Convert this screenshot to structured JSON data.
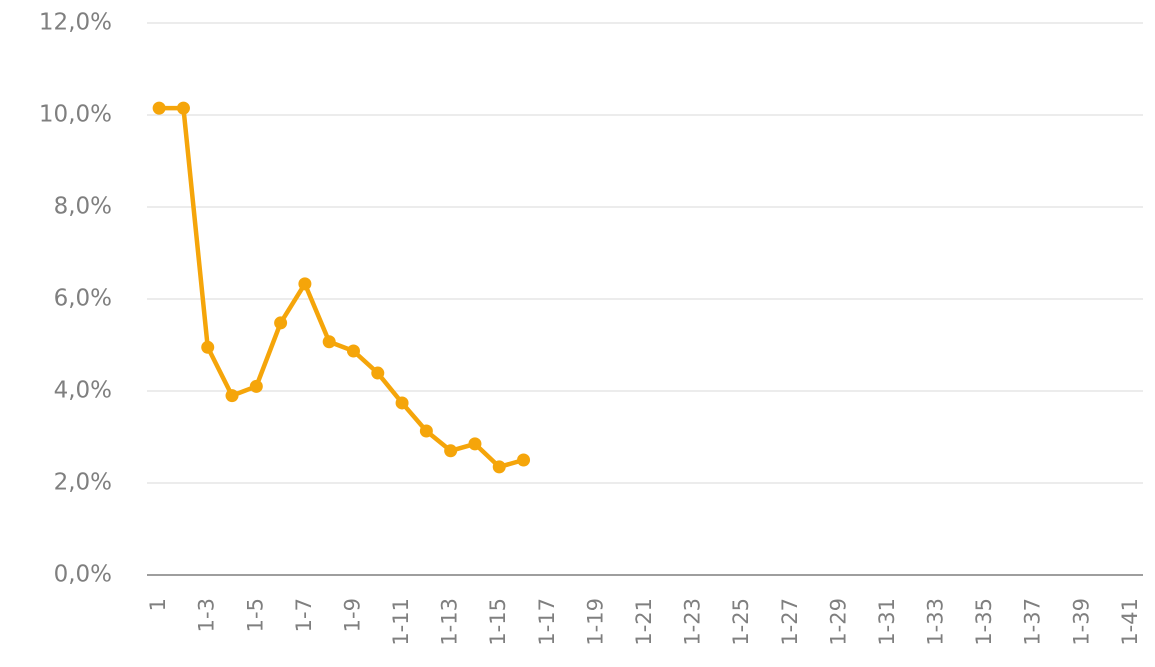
{
  "chart_data": {
    "type": "line",
    "categories": [
      "1",
      null,
      "1-3",
      null,
      "1-5",
      null,
      "1-7",
      null,
      "1-9",
      null,
      "1-11",
      null,
      "1-13",
      null,
      "1-15",
      null,
      "1-17",
      null,
      "1-19",
      null,
      "1-21",
      null,
      "1-23",
      null,
      "1-25",
      null,
      "1-27",
      null,
      "1-29",
      null,
      "1-31",
      null,
      "1-33",
      null,
      "1-35",
      null,
      "1-37",
      null,
      "1-39",
      null,
      "1-41"
    ],
    "series": [
      {
        "color": "#f5a50a",
        "values": [
          10.15,
          10.15,
          4.95,
          3.9,
          4.1,
          5.48,
          6.33,
          5.07,
          4.87,
          4.39,
          3.74,
          3.13,
          2.7,
          2.85,
          2.35,
          2.5,
          null,
          null,
          null,
          null,
          null,
          null,
          null,
          null,
          null,
          null,
          null,
          null,
          null,
          null,
          null,
          null,
          null,
          null,
          null,
          null,
          null,
          null,
          null,
          null,
          null
        ]
      }
    ],
    "ylim": [
      0,
      12
    ],
    "yticks": [
      {
        "value": 0,
        "label": "0,0%"
      },
      {
        "value": 2,
        "label": "2,0%"
      },
      {
        "value": 4,
        "label": "4,0%"
      },
      {
        "value": 6,
        "label": "6,0%"
      },
      {
        "value": 8,
        "label": "8,0%"
      },
      {
        "value": 10,
        "label": "10,0%"
      },
      {
        "value": 12,
        "label": "12,0%"
      }
    ],
    "grid": true
  }
}
